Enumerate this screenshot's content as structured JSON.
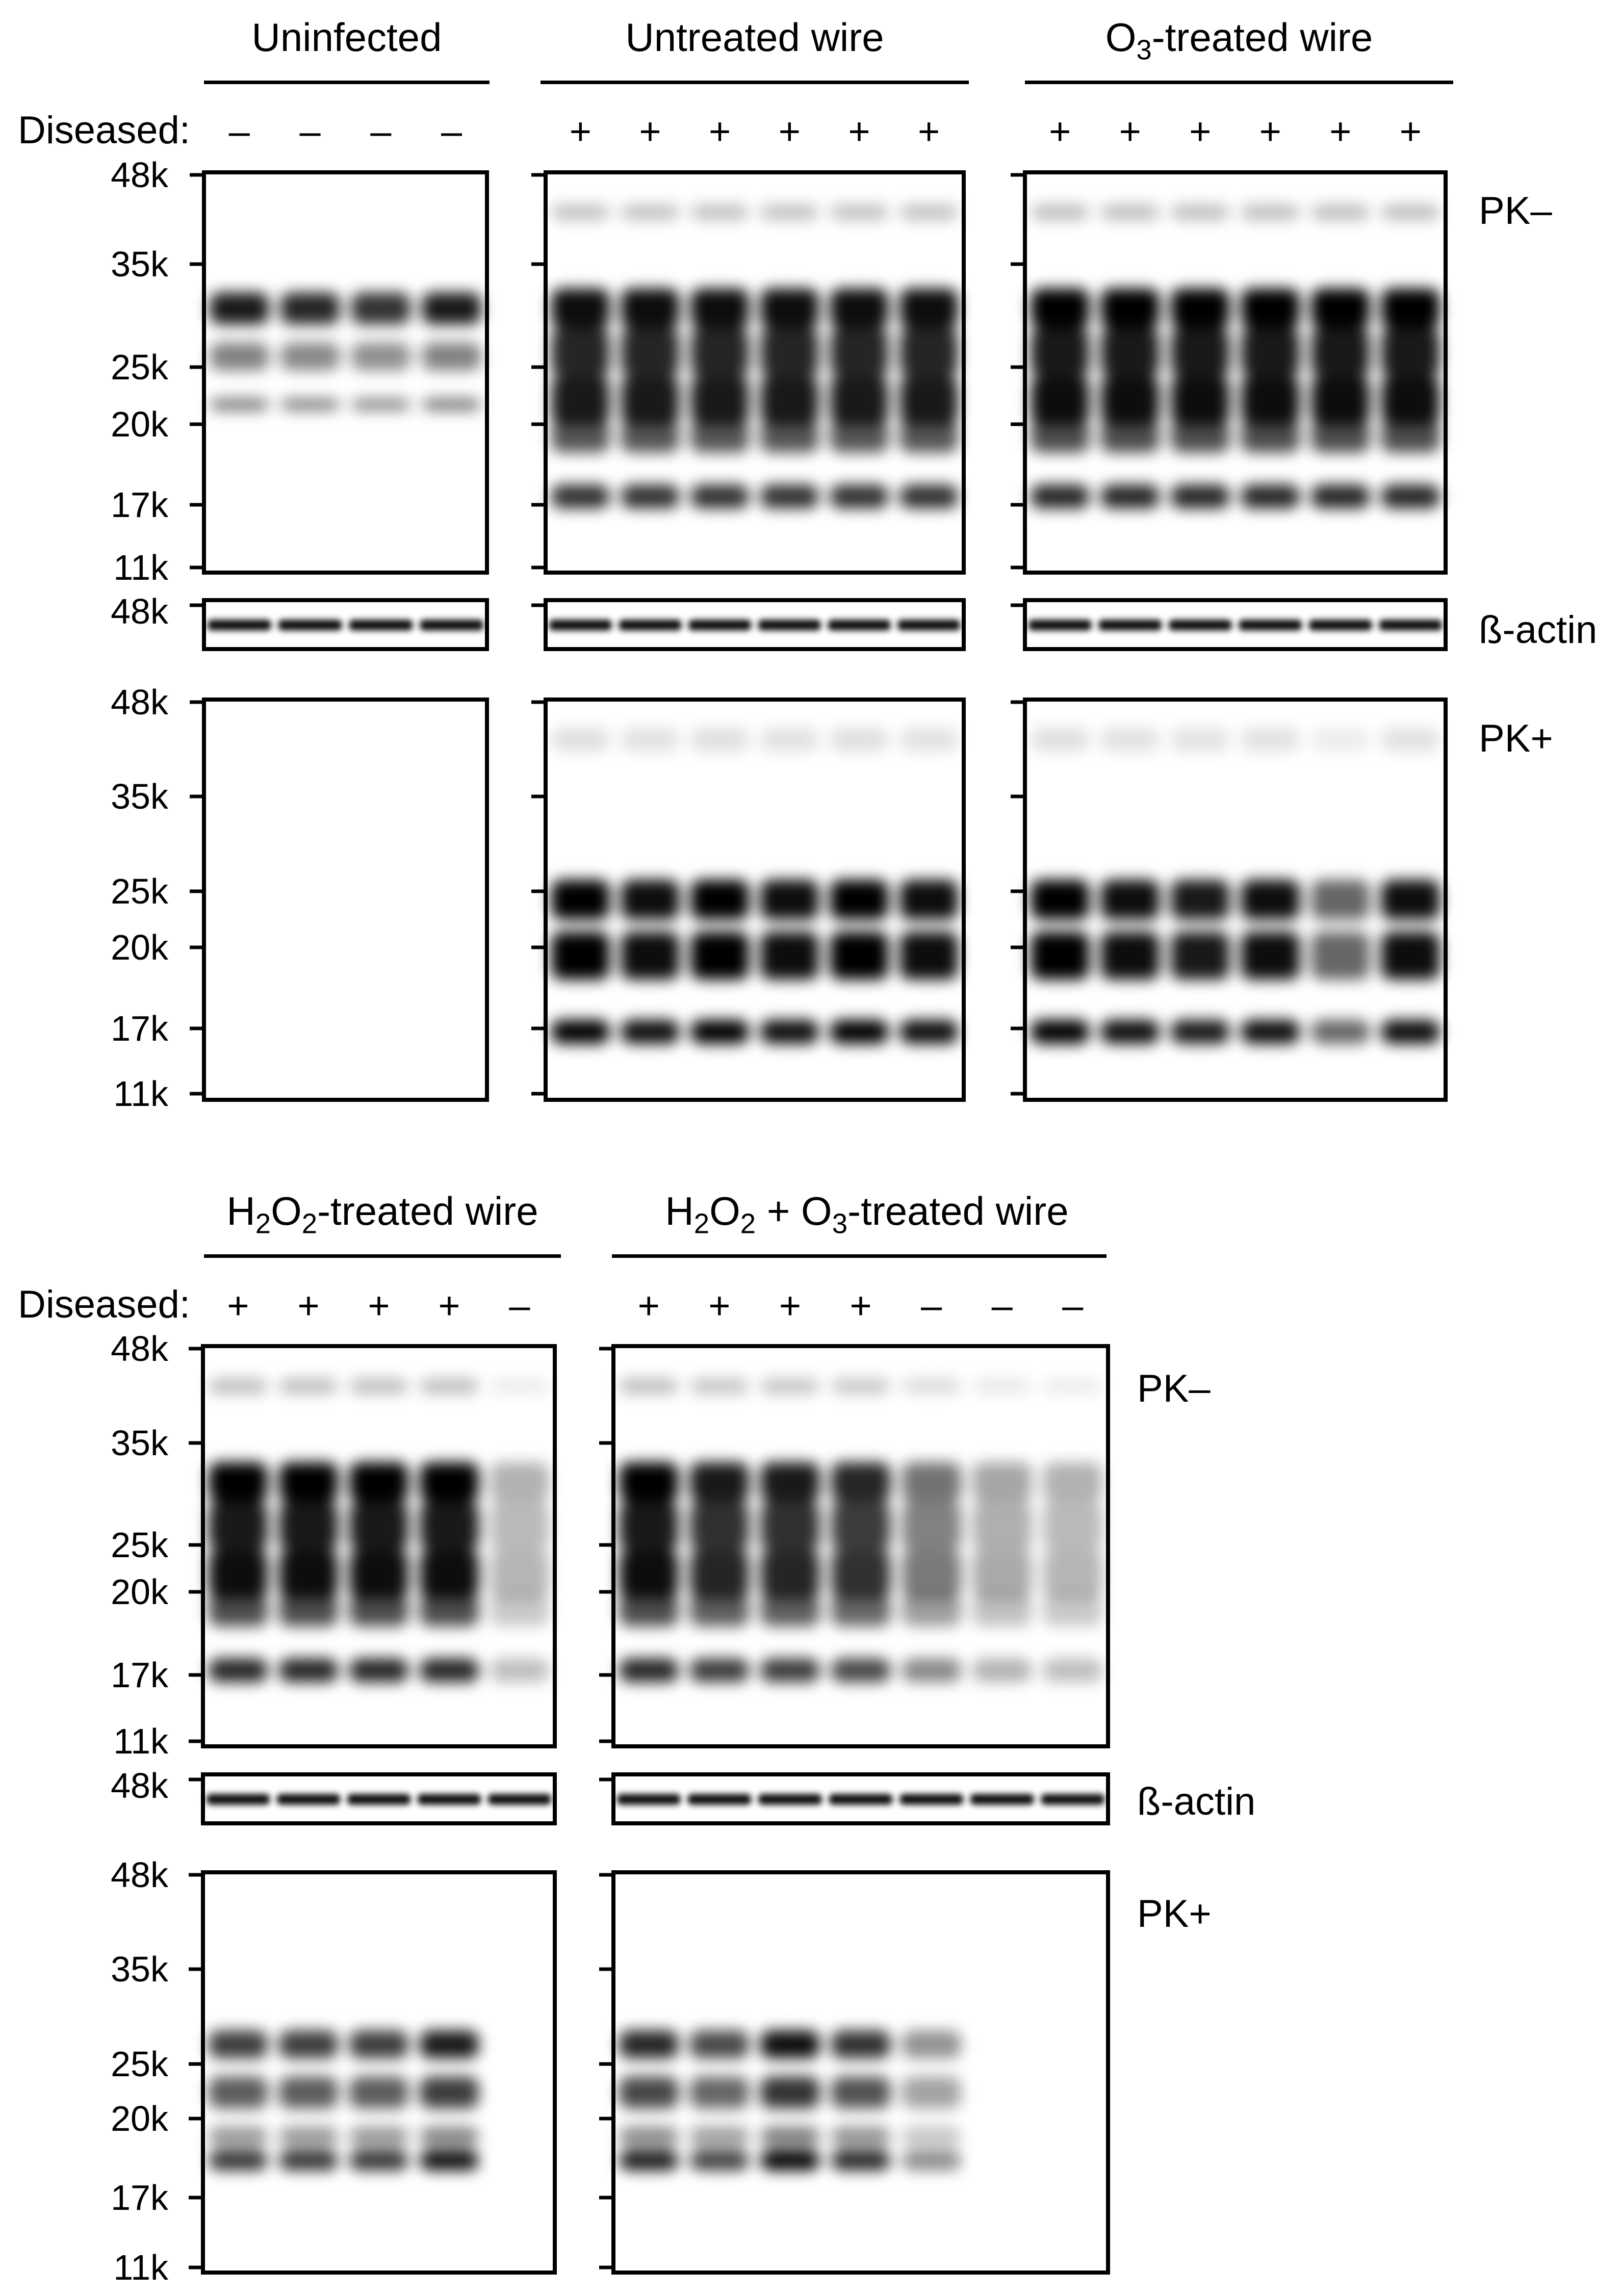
{
  "labels": {
    "diseased": "Diseased:",
    "pk_minus": "PK–",
    "pk_plus": "PK+",
    "beta_actin": "ß-actin"
  },
  "groups": {
    "uninfected": {
      "title": "Uninfected",
      "signs": [
        "–",
        "–",
        "–",
        "–"
      ]
    },
    "untreated": {
      "title": "Untreated wire",
      "signs": [
        "+",
        "+",
        "+",
        "+",
        "+",
        "+"
      ]
    },
    "o3": {
      "title_main": "O",
      "title_sub": "3",
      "title_rest": "-treated wire",
      "signs": [
        "+",
        "+",
        "+",
        "+",
        "+",
        "+"
      ]
    },
    "h2o2": {
      "title_a": "H",
      "title_sub1": "2",
      "title_b": "O",
      "title_sub2": "2",
      "title_rest": "-treated wire",
      "signs": [
        "+",
        "+",
        "+",
        "+",
        "–"
      ]
    },
    "h2o2_o3": {
      "title_a": "H",
      "title_sub1": "2",
      "title_b": "O",
      "title_sub2": "2",
      "title_c": " + O",
      "title_sub3": "3",
      "title_rest": "-treated wire",
      "signs": [
        "+",
        "+",
        "+",
        "+",
        "–",
        "–",
        "–"
      ]
    }
  },
  "mw_markers": [
    "48k",
    "35k",
    "25k",
    "20k",
    "17k",
    "11k"
  ],
  "mw_actin": "48k",
  "band_intensity": {
    "top_pk_minus": {
      "uninfected": [
        0.9,
        0.85,
        0.8,
        0.9
      ],
      "untreated": [
        0.95,
        0.95,
        0.95,
        0.95,
        0.95,
        0.95
      ],
      "o3": [
        1,
        1,
        1,
        1,
        1,
        1
      ]
    },
    "top_pk_plus": {
      "uninfected": [
        0,
        0,
        0,
        0
      ],
      "untreated": [
        1,
        0.95,
        1,
        0.95,
        1,
        0.95
      ],
      "o3": [
        1,
        0.95,
        0.9,
        0.95,
        0.6,
        0.95
      ]
    },
    "bottom_pk_minus": {
      "h2o2": [
        1,
        1,
        1,
        1,
        0.3
      ],
      "h2o2_o3": [
        1,
        0.9,
        0.9,
        0.85,
        0.55,
        0.35,
        0.3
      ]
    },
    "bottom_pk_plus": {
      "h2o2": [
        0.8,
        0.8,
        0.8,
        0.95,
        0
      ],
      "h2o2_o3": [
        0.9,
        0.75,
        1,
        0.85,
        0.45,
        0,
        0
      ]
    }
  }
}
